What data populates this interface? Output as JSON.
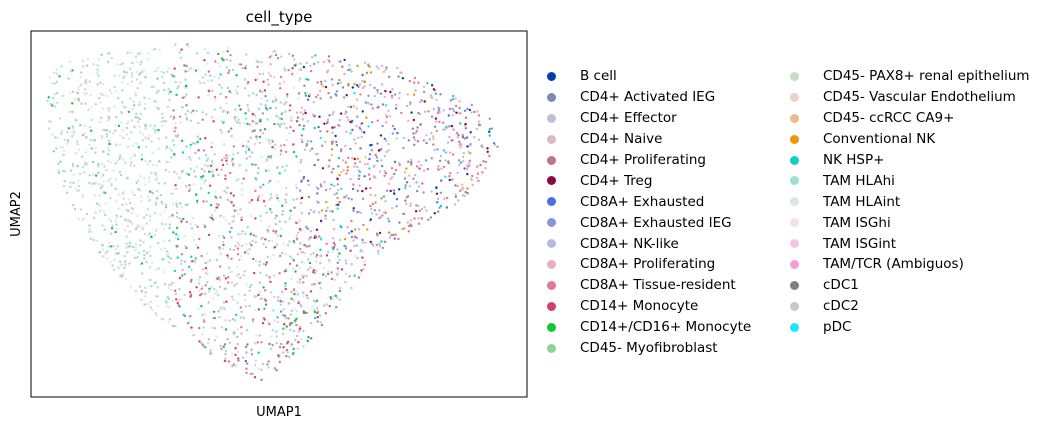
{
  "chart_data": {
    "type": "scatter",
    "title": "cell_type",
    "xlabel": "UMAP1",
    "ylabel": "UMAP2",
    "x_ticks": false,
    "y_ticks": false,
    "grid": false,
    "legend_placement": "right, two columns",
    "series": [
      {
        "name": "B cell",
        "color": "#023fa5"
      },
      {
        "name": "CD4+ Activated IEG",
        "color": "#7d87b9"
      },
      {
        "name": "CD4+ Effector",
        "color": "#bec1d4"
      },
      {
        "name": "CD4+ Naive",
        "color": "#d6bcc0"
      },
      {
        "name": "CD4+ Proliferating",
        "color": "#bb7784"
      },
      {
        "name": "CD4+ Treg",
        "color": "#8e063b"
      },
      {
        "name": "CD8A+ Exhausted",
        "color": "#4a6fe3"
      },
      {
        "name": "CD8A+ Exhausted IEG",
        "color": "#8595e1"
      },
      {
        "name": "CD8A+ NK-like",
        "color": "#b5bbe3"
      },
      {
        "name": "CD8A+ Proliferating",
        "color": "#e6afb9"
      },
      {
        "name": "CD8A+ Tissue-resident",
        "color": "#e07b91"
      },
      {
        "name": "CD14+ Monocyte",
        "color": "#d33f6a"
      },
      {
        "name": "CD14+/CD16+ Monocyte",
        "color": "#11c638"
      },
      {
        "name": "CD45- Myofibroblast",
        "color": "#8dd593"
      },
      {
        "name": "CD45- PAX8+ renal epithelium",
        "color": "#c6dec7"
      },
      {
        "name": "CD45- Vascular Endothelium",
        "color": "#ead3c6"
      },
      {
        "name": "CD45- ccRCC CA9+",
        "color": "#f0b98d"
      },
      {
        "name": "Conventional NK",
        "color": "#ef9708"
      },
      {
        "name": "NK HSP+",
        "color": "#0fcfc0"
      },
      {
        "name": "TAM HLAhi",
        "color": "#9cded6"
      },
      {
        "name": "TAM HLAint",
        "color": "#d5eae7"
      },
      {
        "name": "TAM ISGhi",
        "color": "#f3e1eb"
      },
      {
        "name": "TAM ISGint",
        "color": "#f6c4e1"
      },
      {
        "name": "TAM/TCR (Ambiguos)",
        "color": "#f79cd4"
      },
      {
        "name": "cDC1",
        "color": "#7f7f7f"
      },
      {
        "name": "cDC2",
        "color": "#c7c7c7"
      },
      {
        "name": "pDC",
        "color": "#1ce6ff"
      }
    ]
  }
}
